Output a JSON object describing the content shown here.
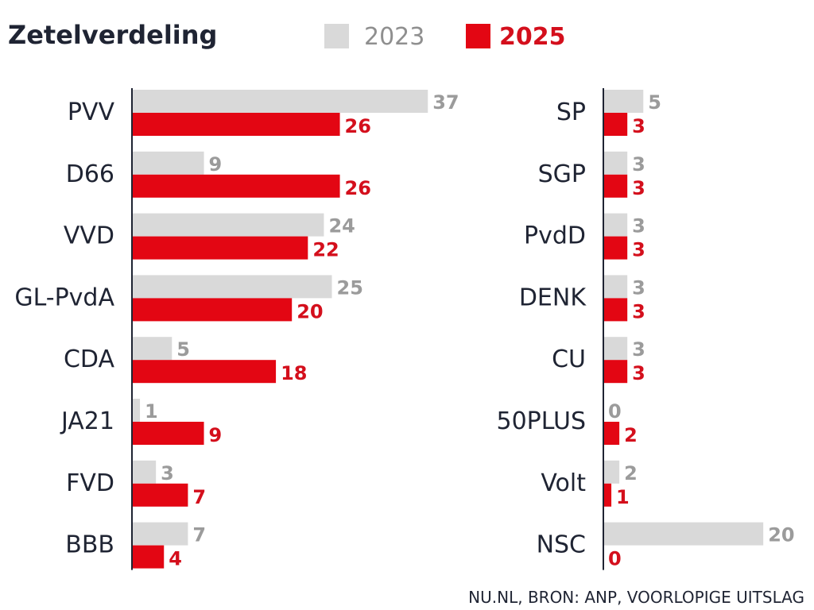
{
  "chart_data": {
    "type": "bar",
    "orientation": "horizontal",
    "title": "Zetelverdeling",
    "source": "NU.NL, BRON: ANP, VOORLOPIGE UITSLAG",
    "legend_position": "top",
    "series": [
      {
        "name": "2023",
        "color": "#d9d9d9",
        "label_color": "#9b9b9b"
      },
      {
        "name": "2025",
        "color": "#e30613",
        "label_color": "#d40f1c"
      }
    ],
    "panels": [
      {
        "categories": [
          "PVV",
          "D66",
          "VVD",
          "GL-PvdA",
          "CDA",
          "JA21",
          "FVD",
          "BBB"
        ],
        "values_2023": [
          37,
          9,
          24,
          25,
          5,
          1,
          3,
          7
        ],
        "values_2025": [
          26,
          26,
          22,
          20,
          18,
          9,
          7,
          4
        ]
      },
      {
        "categories": [
          "SP",
          "SGP",
          "PvdD",
          "DENK",
          "CU",
          "50PLUS",
          "Volt",
          "NSC"
        ],
        "values_2023": [
          5,
          3,
          3,
          3,
          3,
          0,
          2,
          20
        ],
        "values_2025": [
          3,
          3,
          3,
          3,
          3,
          2,
          1,
          0
        ]
      }
    ]
  }
}
